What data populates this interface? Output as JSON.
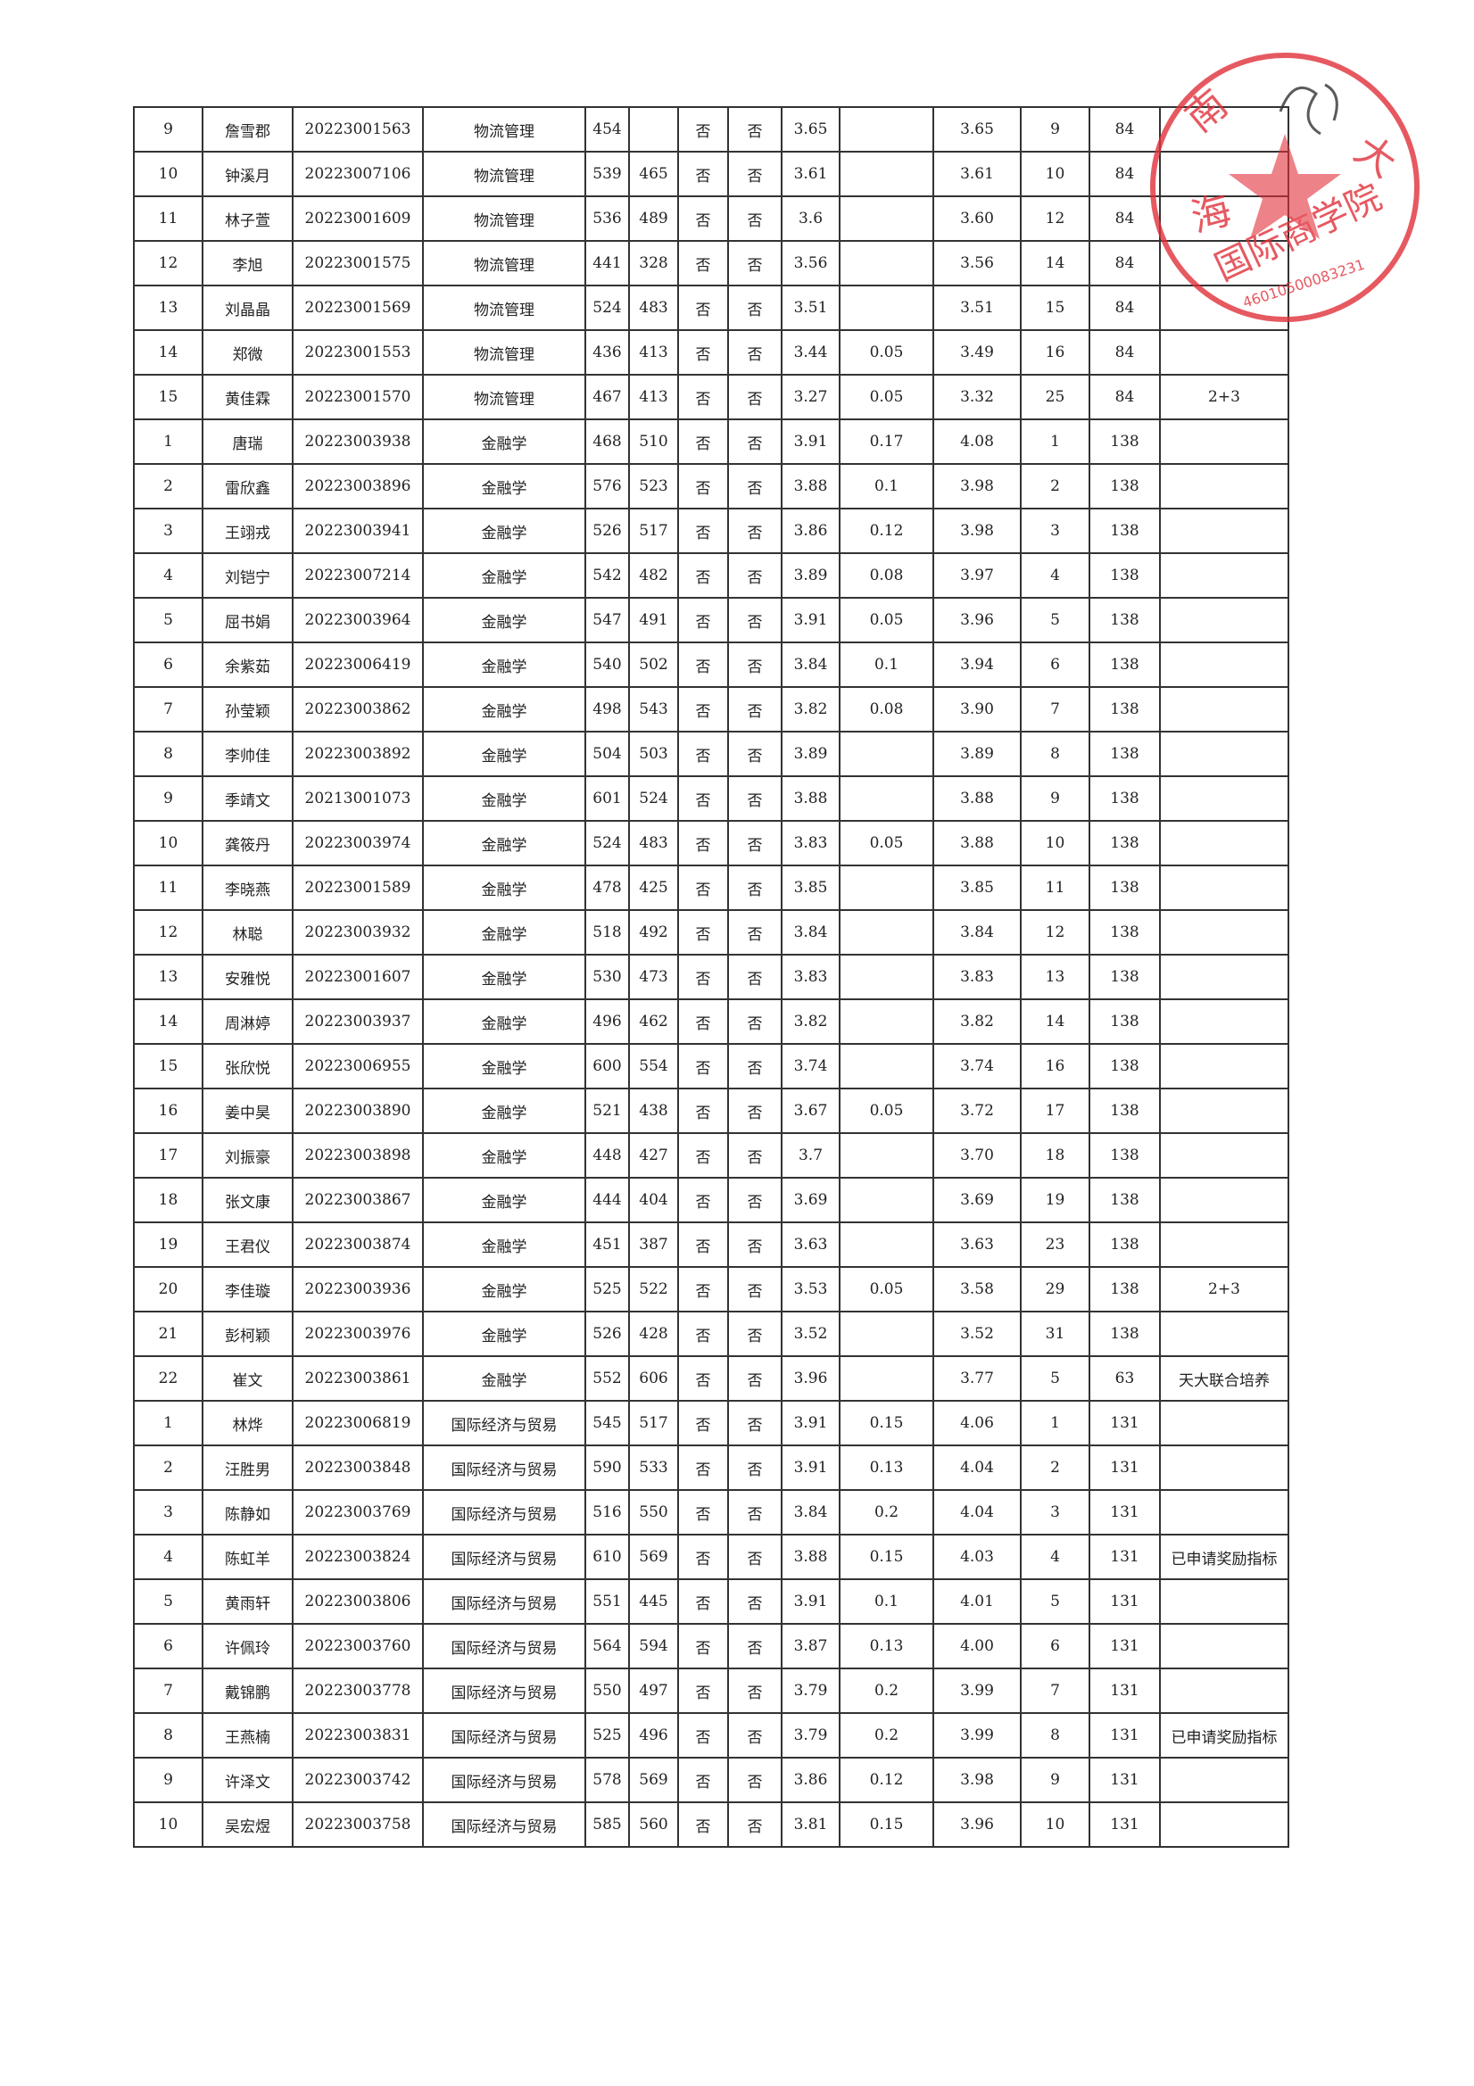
{
  "table": {
    "rows": [
      [
        "9",
        "詹雪郡",
        "20223001563",
        "物流管理",
        "454",
        "",
        "否",
        "否",
        "3.65",
        "",
        "3.65",
        "9",
        "84",
        ""
      ],
      [
        "10",
        "钟溪月",
        "20223007106",
        "物流管理",
        "539",
        "465",
        "否",
        "否",
        "3.61",
        "",
        "3.61",
        "10",
        "84",
        ""
      ],
      [
        "11",
        "林子萱",
        "20223001609",
        "物流管理",
        "536",
        "489",
        "否",
        "否",
        "3.6",
        "",
        "3.60",
        "12",
        "84",
        ""
      ],
      [
        "12",
        "李旭",
        "20223001575",
        "物流管理",
        "441",
        "328",
        "否",
        "否",
        "3.56",
        "",
        "3.56",
        "14",
        "84",
        ""
      ],
      [
        "13",
        "刘晶晶",
        "20223001569",
        "物流管理",
        "524",
        "483",
        "否",
        "否",
        "3.51",
        "",
        "3.51",
        "15",
        "84",
        ""
      ],
      [
        "14",
        "郑微",
        "20223001553",
        "物流管理",
        "436",
        "413",
        "否",
        "否",
        "3.44",
        "0.05",
        "3.49",
        "16",
        "84",
        ""
      ],
      [
        "15",
        "黄佳霖",
        "20223001570",
        "物流管理",
        "467",
        "413",
        "否",
        "否",
        "3.27",
        "0.05",
        "3.32",
        "25",
        "84",
        "2+3"
      ],
      [
        "1",
        "唐瑞",
        "20223003938",
        "金融学",
        "468",
        "510",
        "否",
        "否",
        "3.91",
        "0.17",
        "4.08",
        "1",
        "138",
        ""
      ],
      [
        "2",
        "雷欣鑫",
        "20223003896",
        "金融学",
        "576",
        "523",
        "否",
        "否",
        "3.88",
        "0.1",
        "3.98",
        "2",
        "138",
        ""
      ],
      [
        "3",
        "王翊戎",
        "20223003941",
        "金融学",
        "526",
        "517",
        "否",
        "否",
        "3.86",
        "0.12",
        "3.98",
        "3",
        "138",
        ""
      ],
      [
        "4",
        "刘铠宁",
        "20223007214",
        "金融学",
        "542",
        "482",
        "否",
        "否",
        "3.89",
        "0.08",
        "3.97",
        "4",
        "138",
        ""
      ],
      [
        "5",
        "屈书娟",
        "20223003964",
        "金融学",
        "547",
        "491",
        "否",
        "否",
        "3.91",
        "0.05",
        "3.96",
        "5",
        "138",
        ""
      ],
      [
        "6",
        "余紫茹",
        "20223006419",
        "金融学",
        "540",
        "502",
        "否",
        "否",
        "3.84",
        "0.1",
        "3.94",
        "6",
        "138",
        ""
      ],
      [
        "7",
        "孙莹颖",
        "20223003862",
        "金融学",
        "498",
        "543",
        "否",
        "否",
        "3.82",
        "0.08",
        "3.90",
        "7",
        "138",
        ""
      ],
      [
        "8",
        "李帅佳",
        "20223003892",
        "金融学",
        "504",
        "503",
        "否",
        "否",
        "3.89",
        "",
        "3.89",
        "8",
        "138",
        ""
      ],
      [
        "9",
        "季靖文",
        "20213001073",
        "金融学",
        "601",
        "524",
        "否",
        "否",
        "3.88",
        "",
        "3.88",
        "9",
        "138",
        ""
      ],
      [
        "10",
        "龚筱丹",
        "20223003974",
        "金融学",
        "524",
        "483",
        "否",
        "否",
        "3.83",
        "0.05",
        "3.88",
        "10",
        "138",
        ""
      ],
      [
        "11",
        "李晓燕",
        "20223001589",
        "金融学",
        "478",
        "425",
        "否",
        "否",
        "3.85",
        "",
        "3.85",
        "11",
        "138",
        ""
      ],
      [
        "12",
        "林聪",
        "20223003932",
        "金融学",
        "518",
        "492",
        "否",
        "否",
        "3.84",
        "",
        "3.84",
        "12",
        "138",
        ""
      ],
      [
        "13",
        "安雅悦",
        "20223001607",
        "金融学",
        "530",
        "473",
        "否",
        "否",
        "3.83",
        "",
        "3.83",
        "13",
        "138",
        ""
      ],
      [
        "14",
        "周淋婷",
        "20223003937",
        "金融学",
        "496",
        "462",
        "否",
        "否",
        "3.82",
        "",
        "3.82",
        "14",
        "138",
        ""
      ],
      [
        "15",
        "张欣悦",
        "20223006955",
        "金融学",
        "600",
        "554",
        "否",
        "否",
        "3.74",
        "",
        "3.74",
        "16",
        "138",
        ""
      ],
      [
        "16",
        "姜中昊",
        "20223003890",
        "金融学",
        "521",
        "438",
        "否",
        "否",
        "3.67",
        "0.05",
        "3.72",
        "17",
        "138",
        ""
      ],
      [
        "17",
        "刘振豪",
        "20223003898",
        "金融学",
        "448",
        "427",
        "否",
        "否",
        "3.7",
        "",
        "3.70",
        "18",
        "138",
        ""
      ],
      [
        "18",
        "张文康",
        "20223003867",
        "金融学",
        "444",
        "404",
        "否",
        "否",
        "3.69",
        "",
        "3.69",
        "19",
        "138",
        ""
      ],
      [
        "19",
        "王君仪",
        "20223003874",
        "金融学",
        "451",
        "387",
        "否",
        "否",
        "3.63",
        "",
        "3.63",
        "23",
        "138",
        ""
      ],
      [
        "20",
        "李佳璇",
        "20223003936",
        "金融学",
        "525",
        "522",
        "否",
        "否",
        "3.53",
        "0.05",
        "3.58",
        "29",
        "138",
        "2+3"
      ],
      [
        "21",
        "彭柯颖",
        "20223003976",
        "金融学",
        "526",
        "428",
        "否",
        "否",
        "3.52",
        "",
        "3.52",
        "31",
        "138",
        ""
      ],
      [
        "22",
        "崔文",
        "20223003861",
        "金融学",
        "552",
        "606",
        "否",
        "否",
        "3.96",
        "",
        "3.77",
        "5",
        "63",
        "天大联合培养"
      ],
      [
        "1",
        "林烨",
        "20223006819",
        "国际经济与贸易",
        "545",
        "517",
        "否",
        "否",
        "3.91",
        "0.15",
        "4.06",
        "1",
        "131",
        ""
      ],
      [
        "2",
        "汪胜男",
        "20223003848",
        "国际经济与贸易",
        "590",
        "533",
        "否",
        "否",
        "3.91",
        "0.13",
        "4.04",
        "2",
        "131",
        ""
      ],
      [
        "3",
        "陈静如",
        "20223003769",
        "国际经济与贸易",
        "516",
        "550",
        "否",
        "否",
        "3.84",
        "0.2",
        "4.04",
        "3",
        "131",
        ""
      ],
      [
        "4",
        "陈虹羊",
        "20223003824",
        "国际经济与贸易",
        "610",
        "569",
        "否",
        "否",
        "3.88",
        "0.15",
        "4.03",
        "4",
        "131",
        "已申请奖励指标"
      ],
      [
        "5",
        "黄雨轩",
        "20223003806",
        "国际经济与贸易",
        "551",
        "445",
        "否",
        "否",
        "3.91",
        "0.1",
        "4.01",
        "5",
        "131",
        ""
      ],
      [
        "6",
        "许佩玲",
        "20223003760",
        "国际经济与贸易",
        "564",
        "594",
        "否",
        "否",
        "3.87",
        "0.13",
        "4.00",
        "6",
        "131",
        ""
      ],
      [
        "7",
        "戴锦鹏",
        "20223003778",
        "国际经济与贸易",
        "550",
        "497",
        "否",
        "否",
        "3.79",
        "0.2",
        "3.99",
        "7",
        "131",
        ""
      ],
      [
        "8",
        "王燕楠",
        "20223003831",
        "国际经济与贸易",
        "525",
        "496",
        "否",
        "否",
        "3.79",
        "0.2",
        "3.99",
        "8",
        "131",
        "已申请奖励指标"
      ],
      [
        "9",
        "许泽文",
        "20223003742",
        "国际经济与贸易",
        "578",
        "569",
        "否",
        "否",
        "3.86",
        "0.12",
        "3.98",
        "9",
        "131",
        ""
      ],
      [
        "10",
        "吴宏煜",
        "20223003758",
        "国际经济与贸易",
        "585",
        "560",
        "否",
        "否",
        "3.81",
        "0.15",
        "3.96",
        "10",
        "131",
        ""
      ]
    ]
  },
  "stamp": {
    "text": "海南大学国际商学院",
    "number": "46010500083231",
    "color": "#e0303a"
  }
}
